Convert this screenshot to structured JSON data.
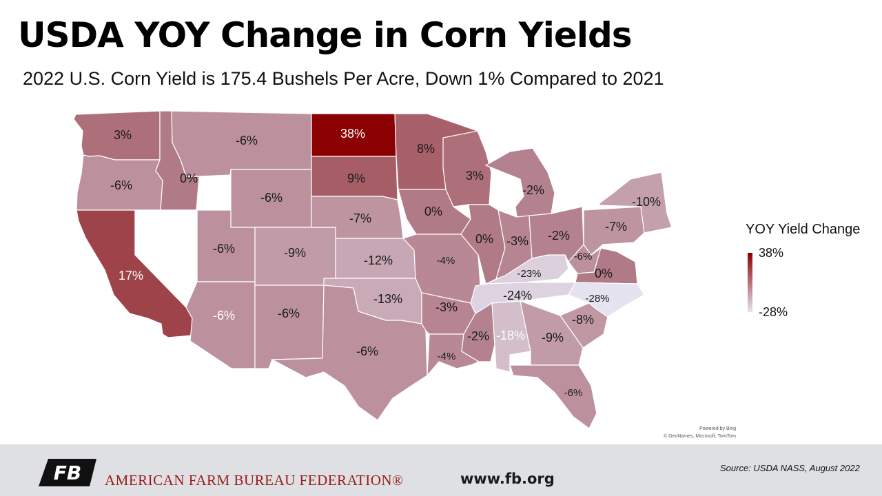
{
  "title": "USDA YOY Change in Corn Yields",
  "subtitle": "2022 U.S. Corn Yield is 175.4 Bushels Per Acre, Down 1% Compared to 2021",
  "legend": {
    "title": "YOY Yield Change",
    "max_label": "38%",
    "min_label": "-28%",
    "max_value": 38,
    "min_value": -28,
    "max_color": "#8b0000",
    "min_color": "#e6e3f0",
    "zero_color": "#b07a86"
  },
  "map_data": {
    "type": "choropleth",
    "metric": "YOY Yield Change (%)",
    "states": [
      {
        "state": "WA",
        "value": 3,
        "label": "3%"
      },
      {
        "state": "OR",
        "value": -6,
        "label": "-6%"
      },
      {
        "state": "CA",
        "value": 17,
        "label": "17%"
      },
      {
        "state": "ID",
        "value": 0,
        "label": "0%"
      },
      {
        "state": "MT",
        "value": -6,
        "label": "-6%"
      },
      {
        "state": "WY",
        "value": -6,
        "label": "-6%"
      },
      {
        "state": "UT",
        "value": -6,
        "label": "-6%"
      },
      {
        "state": "AZ",
        "value": -6,
        "label": "-6%"
      },
      {
        "state": "CO",
        "value": -9,
        "label": "-9%"
      },
      {
        "state": "NM",
        "value": -6,
        "label": "-6%"
      },
      {
        "state": "ND",
        "value": 38,
        "label": "38%"
      },
      {
        "state": "SD",
        "value": 9,
        "label": "9%"
      },
      {
        "state": "NE",
        "value": -7,
        "label": "-7%"
      },
      {
        "state": "KS",
        "value": -12,
        "label": "-12%"
      },
      {
        "state": "OK",
        "value": -13,
        "label": "-13%"
      },
      {
        "state": "TX",
        "value": -6,
        "label": "-6%"
      },
      {
        "state": "MN",
        "value": 8,
        "label": "8%"
      },
      {
        "state": "IA",
        "value": 0,
        "label": "0%"
      },
      {
        "state": "MO",
        "value": -4,
        "label": "-4%"
      },
      {
        "state": "AR",
        "value": -3,
        "label": "-3%"
      },
      {
        "state": "LA",
        "value": -4,
        "label": "-4%"
      },
      {
        "state": "WI",
        "value": 3,
        "label": "3%"
      },
      {
        "state": "IL",
        "value": 0,
        "label": "0%"
      },
      {
        "state": "MS",
        "value": -2,
        "label": "-2%"
      },
      {
        "state": "MI",
        "value": -2,
        "label": "-2%"
      },
      {
        "state": "IN",
        "value": -3,
        "label": "-3%"
      },
      {
        "state": "KY",
        "value": -23,
        "label": "-23%"
      },
      {
        "state": "TN",
        "value": -24,
        "label": "-24%"
      },
      {
        "state": "AL",
        "value": -18,
        "label": "-18%"
      },
      {
        "state": "OH",
        "value": -2,
        "label": "-2%"
      },
      {
        "state": "WV",
        "value": -6,
        "label": "-6%"
      },
      {
        "state": "VA",
        "value": 0,
        "label": "0%"
      },
      {
        "state": "NC",
        "value": -28,
        "label": "-28%"
      },
      {
        "state": "SC",
        "value": -8,
        "label": "-8%"
      },
      {
        "state": "GA",
        "value": -9,
        "label": "-9%"
      },
      {
        "state": "FL",
        "value": -6,
        "label": "-6%"
      },
      {
        "state": "PA",
        "value": -7,
        "label": "-7%"
      },
      {
        "state": "NY",
        "value": -10,
        "label": "-10%"
      },
      {
        "state": "MD",
        "value": null,
        "label": ""
      },
      {
        "state": "DE",
        "value": null,
        "label": ""
      },
      {
        "state": "NJ",
        "value": null,
        "label": ""
      },
      {
        "state": "VT",
        "value": null,
        "label": ""
      },
      {
        "state": "NV",
        "value": null,
        "label": ""
      }
    ]
  },
  "attribution": {
    "line1": "Powered by Bing",
    "line2": "© GeoNames, Microsoft, TomTom"
  },
  "footer": {
    "org_name": "AMERICAN FARM BUREAU FEDERATION®",
    "website": "www.fb.org",
    "source": "Source: USDA NASS, August 2022",
    "logo_text": "FB",
    "logo_color": "#111111",
    "org_color": "#9b1b1b"
  }
}
